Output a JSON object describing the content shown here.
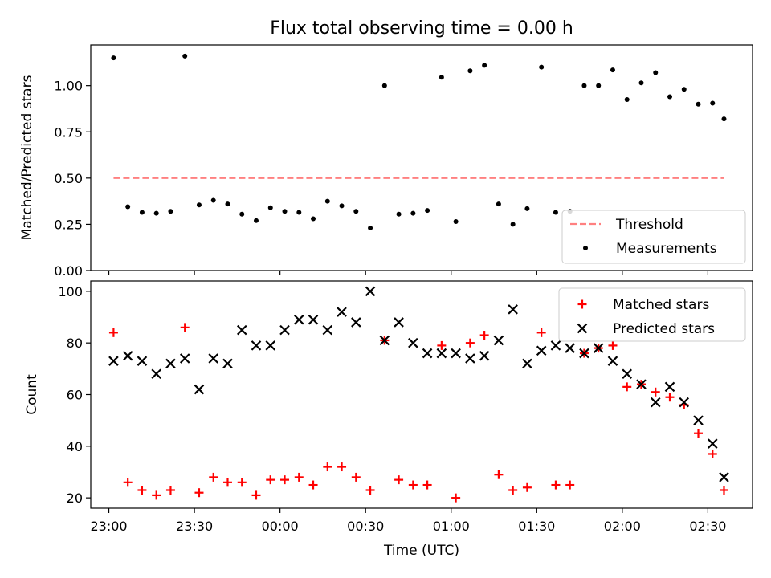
{
  "chart_data": [
    {
      "type": "scatter",
      "title": "Flux total observing time = 0.00 h",
      "xlabel": "",
      "ylabel": "Matched/Predicted stars",
      "ylim": [
        0,
        1.22
      ],
      "yticks": [
        "0.00",
        "0.25",
        "0.50",
        "0.75",
        "1.00"
      ],
      "xlim": [
        -6.35,
        225.65
      ],
      "legend_position": "lower-right",
      "threshold": {
        "name": "Threshold",
        "value": 0.5,
        "x_start": 1.65,
        "x_end": 215.65,
        "color": "#ff8080"
      },
      "series": [
        {
          "name": "Measurements",
          "color": "#000000",
          "x": [
            1.65,
            6.65,
            11.65,
            16.65,
            21.65,
            26.65,
            31.65,
            36.65,
            41.65,
            46.65,
            51.65,
            56.65,
            61.65,
            66.65,
            71.65,
            76.65,
            81.65,
            86.65,
            91.65,
            96.65,
            101.65,
            106.65,
            111.65,
            116.65,
            121.65,
            126.65,
            131.65,
            136.65,
            141.65,
            146.65,
            151.65,
            156.65,
            161.65,
            166.65,
            171.65,
            176.65,
            181.65,
            186.65,
            191.65,
            196.65,
            201.65,
            206.65,
            211.65,
            215.65
          ],
          "y": [
            1.15,
            0.345,
            0.315,
            0.31,
            0.32,
            1.16,
            0.355,
            0.38,
            0.36,
            0.305,
            0.27,
            0.34,
            0.32,
            0.315,
            0.28,
            0.375,
            0.35,
            0.32,
            0.23,
            1.0,
            0.305,
            0.31,
            0.325,
            1.045,
            0.265,
            1.08,
            1.11,
            0.36,
            0.25,
            0.335,
            1.1,
            0.315,
            0.32,
            1.0,
            1.0,
            1.085,
            0.925,
            1.015,
            1.07,
            0.94,
            0.98,
            0.9,
            0.905,
            0.82
          ]
        }
      ]
    },
    {
      "type": "scatter",
      "title": "",
      "xlabel": "Time (UTC)",
      "ylabel": "Count",
      "ylim": [
        16,
        104
      ],
      "yticks": [
        "20",
        "40",
        "60",
        "80",
        "100"
      ],
      "xlim": [
        -6.35,
        225.65
      ],
      "xticks": [
        {
          "x": 0,
          "label": "23:00"
        },
        {
          "x": 30,
          "label": "23:30"
        },
        {
          "x": 60,
          "label": "00:00"
        },
        {
          "x": 90,
          "label": "00:30"
        },
        {
          "x": 120,
          "label": "01:00"
        },
        {
          "x": 150,
          "label": "01:30"
        },
        {
          "x": 180,
          "label": "02:00"
        },
        {
          "x": 210,
          "label": "02:30"
        }
      ],
      "legend_position": "upper-right",
      "series": [
        {
          "name": "Matched stars",
          "marker": "plus",
          "color": "#ff0000",
          "x": [
            1.65,
            6.65,
            11.65,
            16.65,
            21.65,
            26.65,
            31.65,
            36.65,
            41.65,
            46.65,
            51.65,
            56.65,
            61.65,
            66.65,
            71.65,
            76.65,
            81.65,
            86.65,
            91.65,
            96.65,
            101.65,
            106.65,
            111.65,
            116.65,
            121.65,
            126.65,
            131.65,
            136.65,
            141.65,
            146.65,
            151.65,
            156.65,
            161.65,
            166.65,
            171.65,
            176.65,
            181.65,
            186.65,
            191.65,
            196.65,
            201.65,
            206.65,
            211.65,
            215.65
          ],
          "y": [
            84,
            26,
            23,
            21,
            23,
            86,
            22,
            28,
            26,
            26,
            21,
            27,
            27,
            28,
            25,
            32,
            32,
            28,
            23,
            81,
            27,
            25,
            25,
            79,
            20,
            80,
            83,
            29,
            23,
            24,
            84,
            25,
            25,
            76,
            78,
            79,
            63,
            64,
            61,
            59,
            56,
            45,
            37,
            23
          ]
        },
        {
          "name": "Predicted stars",
          "marker": "x",
          "color": "#000000",
          "x": [
            1.65,
            6.65,
            11.65,
            16.65,
            21.65,
            26.65,
            31.65,
            36.65,
            41.65,
            46.65,
            51.65,
            56.65,
            61.65,
            66.65,
            71.65,
            76.65,
            81.65,
            86.65,
            91.65,
            96.65,
            101.65,
            106.65,
            111.65,
            116.65,
            121.65,
            126.65,
            131.65,
            136.65,
            141.65,
            146.65,
            151.65,
            156.65,
            161.65,
            166.65,
            171.65,
            176.65,
            181.65,
            186.65,
            191.65,
            196.65,
            201.65,
            206.65,
            211.65,
            215.65
          ],
          "y": [
            73,
            75,
            73,
            68,
            72,
            74,
            62,
            74,
            72,
            85,
            79,
            79,
            85,
            89,
            89,
            85,
            92,
            88,
            100,
            81,
            88,
            80,
            76,
            76,
            76,
            74,
            75,
            81,
            93,
            72,
            77,
            79,
            78,
            76,
            78,
            73,
            68,
            64,
            57,
            63,
            57,
            50,
            41,
            28
          ]
        }
      ]
    }
  ]
}
